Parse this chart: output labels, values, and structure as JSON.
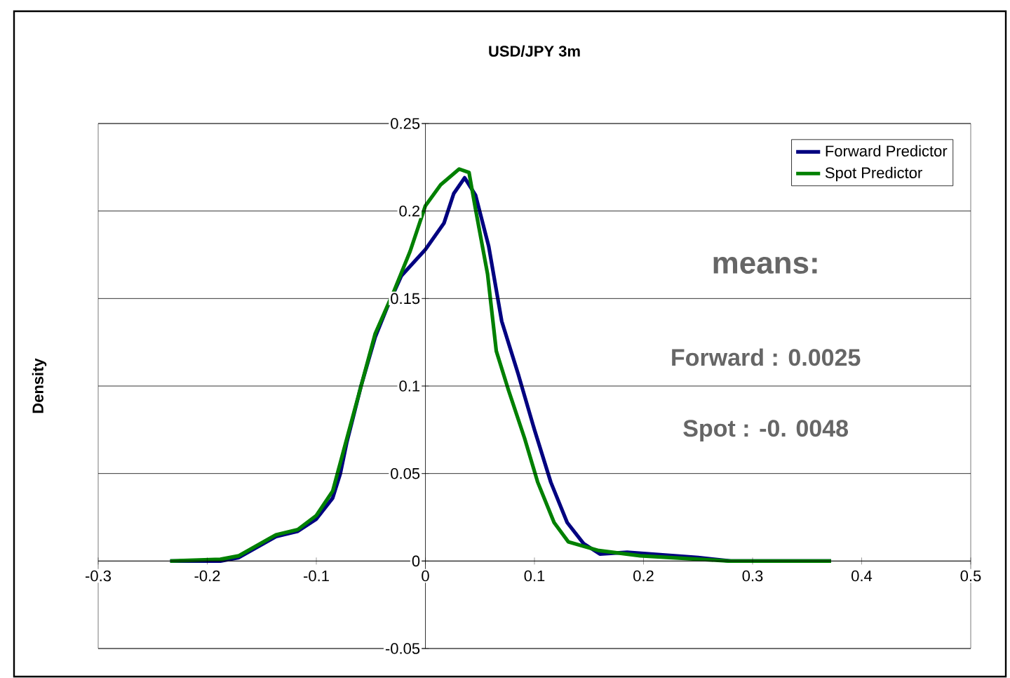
{
  "chart_data": {
    "type": "line",
    "title": "USD/JPY 3m",
    "ylabel": "Density",
    "xlim": [
      -0.3,
      0.5
    ],
    "ylim": [
      -0.05,
      0.25
    ],
    "xticks": [
      -0.3,
      -0.2,
      -0.1,
      0,
      0.1,
      0.2,
      0.3,
      0.4,
      0.5
    ],
    "yticks": [
      -0.05,
      0,
      0.05,
      0.1,
      0.15,
      0.2,
      0.25
    ],
    "grid": "y",
    "legend": "top right",
    "annotations": [
      "means:",
      "Forward : 0.0025",
      "Spot : -0. 0048"
    ],
    "series": [
      {
        "name": "Forward Predictor",
        "color": "#000080",
        "x": [
          -0.234,
          -0.188,
          -0.171,
          -0.137,
          -0.117,
          -0.1,
          -0.085,
          -0.078,
          -0.072,
          -0.059,
          -0.046,
          -0.035,
          -0.022,
          0,
          0.017,
          0.026,
          0.036,
          0.046,
          0.058,
          0.07,
          0.085,
          0.1,
          0.115,
          0.13,
          0.145,
          0.16,
          0.185,
          0.25,
          0.28,
          0.372
        ],
        "values": [
          0,
          0,
          0.002,
          0.014,
          0.017,
          0.024,
          0.036,
          0.05,
          0.068,
          0.1,
          0.128,
          0.145,
          0.163,
          0.178,
          0.193,
          0.21,
          0.219,
          0.209,
          0.18,
          0.137,
          0.107,
          0.075,
          0.045,
          0.022,
          0.01,
          0.004,
          0.005,
          0.002,
          0,
          0
        ]
      },
      {
        "name": "Spot Predictor",
        "color": "#008000",
        "x": [
          -0.234,
          -0.188,
          -0.171,
          -0.137,
          -0.117,
          -0.1,
          -0.085,
          -0.072,
          -0.059,
          -0.046,
          -0.029,
          -0.014,
          0,
          0.014,
          0.031,
          0.04,
          0.046,
          0.057,
          0.065,
          0.076,
          0.091,
          0.103,
          0.118,
          0.131,
          0.159,
          0.197,
          0.278,
          0.372
        ],
        "values": [
          0,
          0.001,
          0.003,
          0.015,
          0.018,
          0.026,
          0.04,
          0.07,
          0.1,
          0.13,
          0.154,
          0.177,
          0.203,
          0.215,
          0.224,
          0.222,
          0.201,
          0.164,
          0.12,
          0.098,
          0.07,
          0.045,
          0.022,
          0.011,
          0.006,
          0.003,
          0,
          0
        ]
      }
    ]
  }
}
